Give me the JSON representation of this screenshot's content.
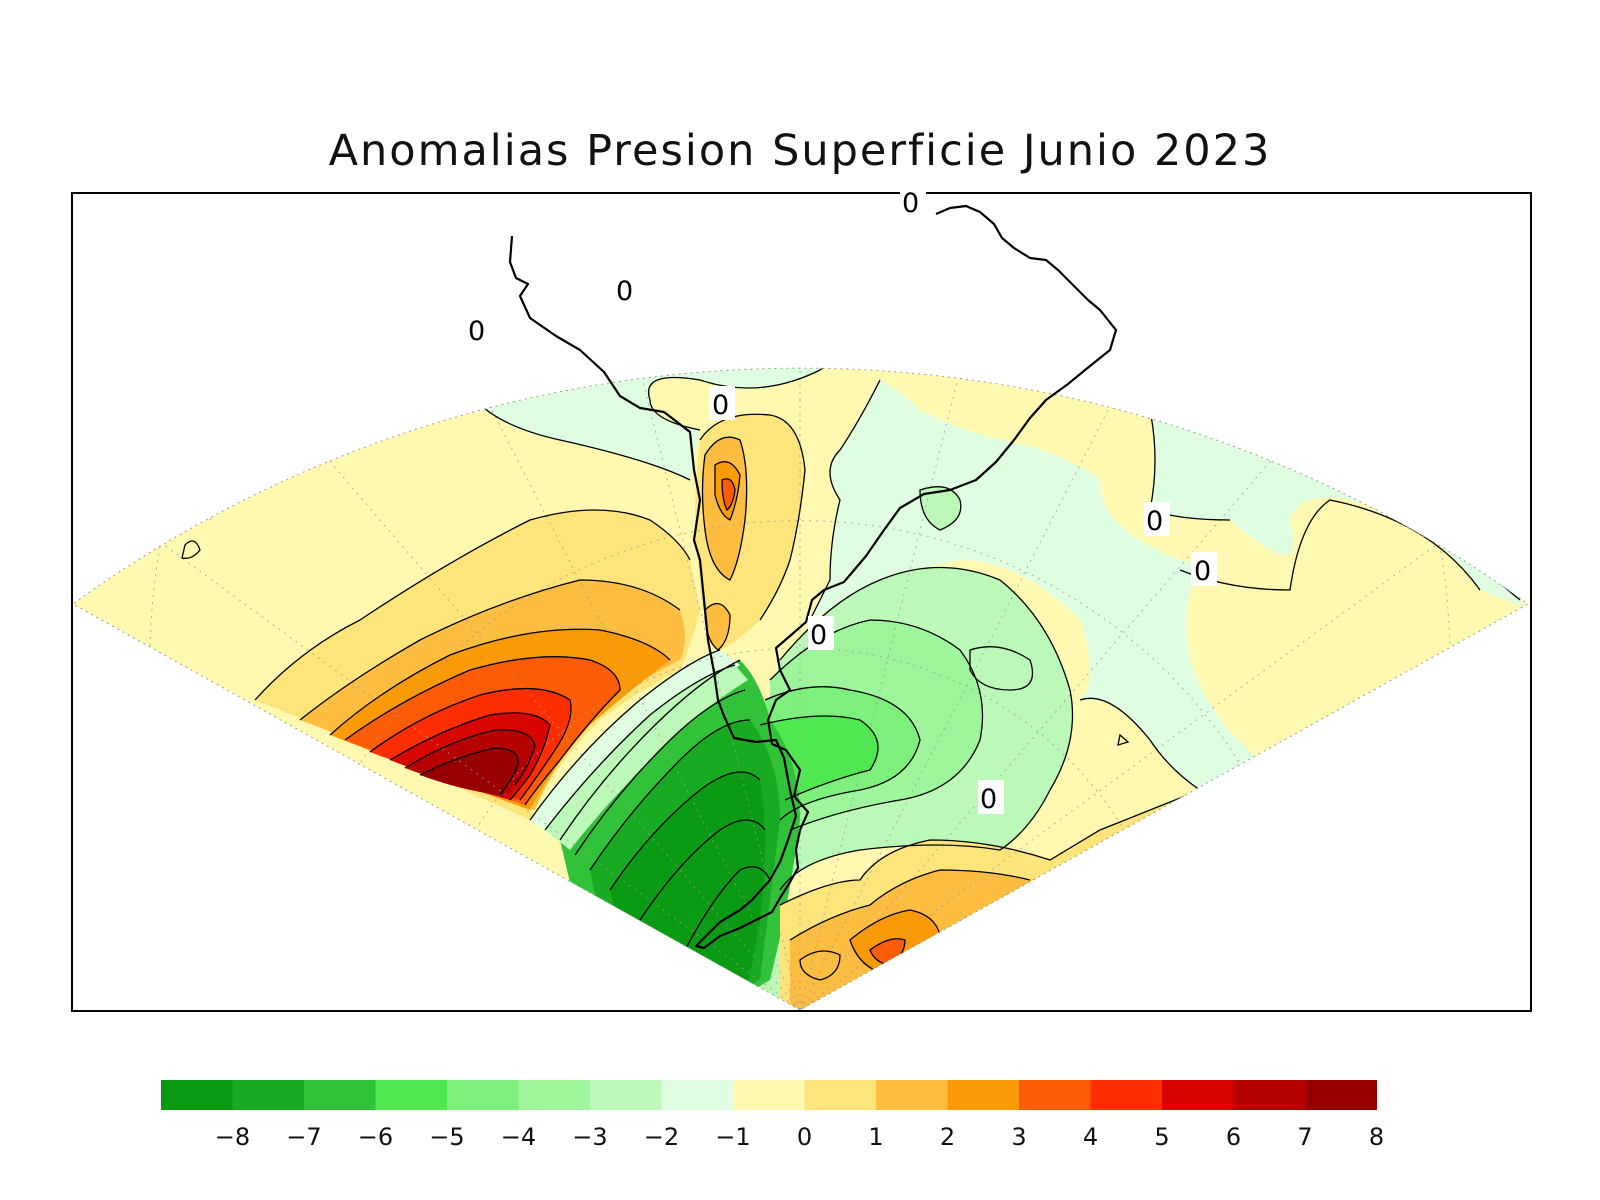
{
  "title": "Anomalias Presion Superficie Junio 2023",
  "contour_zero_label": "0",
  "colorbar": {
    "colors": [
      "#0b9a13",
      "#18aa22",
      "#32c23a",
      "#50e850",
      "#7cf07a",
      "#9ef59b",
      "#bcf8b8",
      "#dffde0",
      "#fff8b0",
      "#fde57c",
      "#fcbd41",
      "#fb9a07",
      "#fd5c06",
      "#ff2e00",
      "#d80400",
      "#b60000",
      "#980000"
    ],
    "tick_labels": [
      "−8",
      "−7",
      "−6",
      "−5",
      "−4",
      "−3",
      "−2",
      "−1",
      "0",
      "1",
      "2",
      "3",
      "4",
      "5",
      "6",
      "7",
      "8"
    ],
    "min": -8,
    "max": 8
  },
  "fields": {
    "background_color": "#fff8b0",
    "line_color": "#000000"
  }
}
